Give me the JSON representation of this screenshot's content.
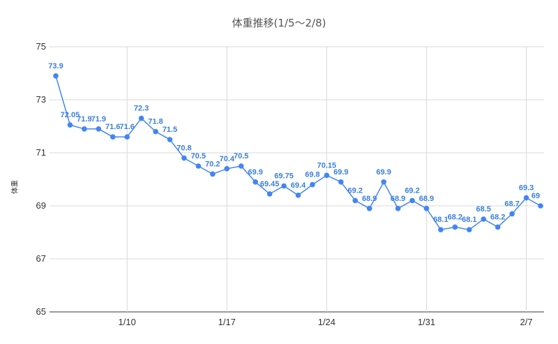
{
  "chart_data": {
    "type": "line",
    "title": "体重推移(1/5〜2/8)",
    "xlabel": "",
    "ylabel": "体重",
    "ylim": [
      65,
      75
    ],
    "yticks": [
      65,
      67,
      69,
      71,
      73,
      75
    ],
    "xticks": [
      {
        "label": "1/10",
        "index": 5
      },
      {
        "label": "1/17",
        "index": 12
      },
      {
        "label": "1/24",
        "index": 19
      },
      {
        "label": "1/31",
        "index": 26
      },
      {
        "label": "2/7",
        "index": 33
      }
    ],
    "grid": true,
    "legend": "none",
    "color": "#4285f4",
    "series": [
      {
        "dates": [
          "1/5",
          "1/6",
          "1/7",
          "1/8",
          "1/9",
          "1/10",
          "1/11",
          "1/12",
          "1/13",
          "1/14",
          "1/15",
          "1/16",
          "1/17",
          "1/18",
          "1/19",
          "1/20",
          "1/21",
          "1/22",
          "1/23",
          "1/24",
          "1/25",
          "1/26",
          "1/27",
          "1/28",
          "1/29",
          "1/30",
          "1/31",
          "2/1",
          "2/2",
          "2/3",
          "2/4",
          "2/5",
          "2/6",
          "2/7",
          "2/8"
        ],
        "values": [
          73.9,
          72.05,
          71.9,
          71.9,
          71.6,
          71.6,
          72.3,
          71.8,
          71.5,
          70.8,
          70.5,
          70.2,
          70.4,
          70.5,
          69.9,
          69.45,
          69.75,
          69.4,
          69.8,
          70.15,
          69.9,
          69.2,
          68.9,
          69.9,
          68.9,
          69.2,
          68.9,
          68.1,
          68.2,
          68.1,
          68.5,
          68.2,
          68.7,
          69.3,
          69
        ],
        "labels": [
          "73.9",
          "72.05",
          "71.9",
          "71.9",
          "71.6",
          "71.6",
          "72.3",
          "71.8",
          "71.5",
          "70.8",
          "70.5",
          "70.2",
          "70.4",
          "70.5",
          "69.9",
          "69.45",
          "69.75",
          "69.4",
          "69.8",
          "70.15",
          "69.9",
          "69.2",
          "68.9",
          "69.9",
          "68.9",
          "69.2",
          "68.9",
          "68.1",
          "68.2",
          "68.1",
          "68.5",
          "68.2",
          "68.7",
          "69.3",
          "69"
        ]
      }
    ]
  }
}
